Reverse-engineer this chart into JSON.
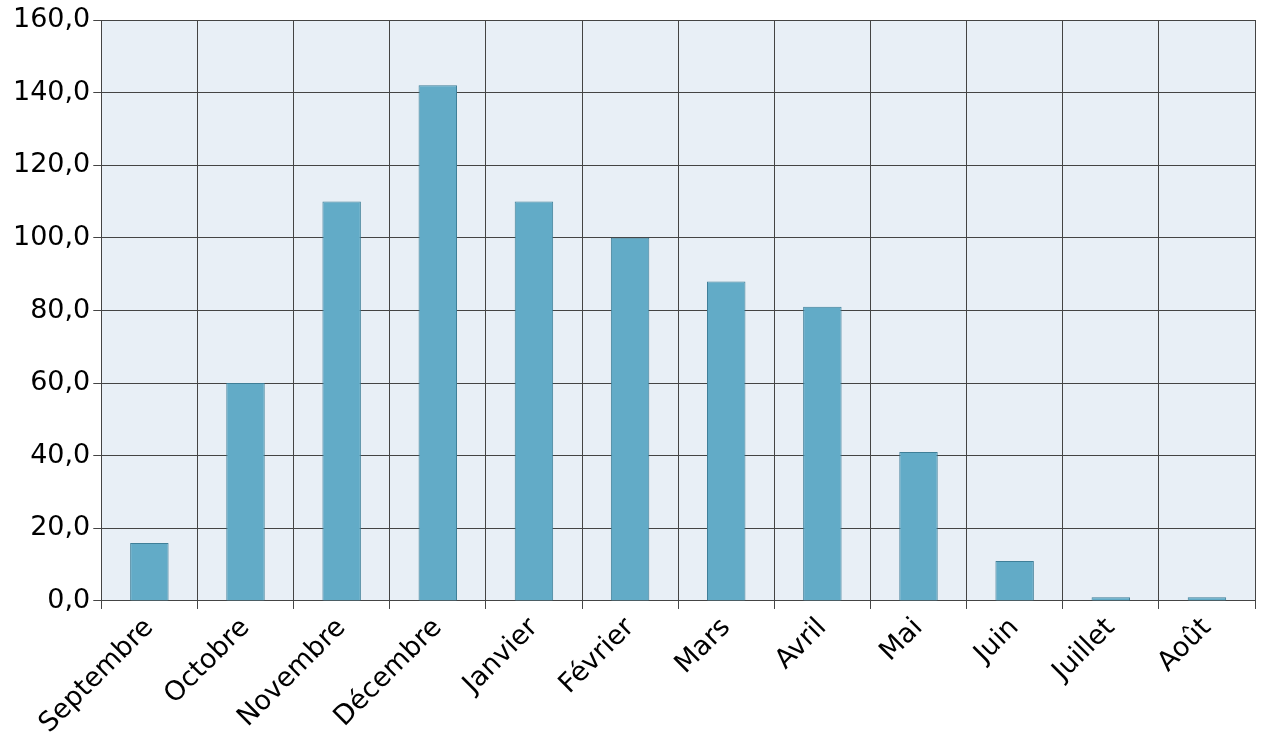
{
  "chart_data": {
    "type": "bar",
    "categories": [
      "Septembre",
      "Octobre",
      "Novembre",
      "Décembre",
      "Janvier",
      "Février",
      "Mars",
      "Avril",
      "Mai",
      "Juin",
      "Juillet",
      "Août"
    ],
    "values": [
      16,
      60,
      110,
      142,
      110,
      100,
      88,
      81,
      41,
      11,
      1,
      1
    ],
    "color": "#62abc7",
    "ylim": [
      0,
      160
    ],
    "yticks": [
      {
        "value": 0,
        "label": "0,0"
      },
      {
        "value": 20,
        "label": "20,0"
      },
      {
        "value": 40,
        "label": "40,0"
      },
      {
        "value": 60,
        "label": "60,0"
      },
      {
        "value": 80,
        "label": "80,0"
      },
      {
        "value": 100,
        "label": "100,0"
      },
      {
        "value": 120,
        "label": "120,0"
      },
      {
        "value": 140,
        "label": "140,0"
      },
      {
        "value": 160,
        "label": "160,0"
      }
    ],
    "grid": true
  }
}
